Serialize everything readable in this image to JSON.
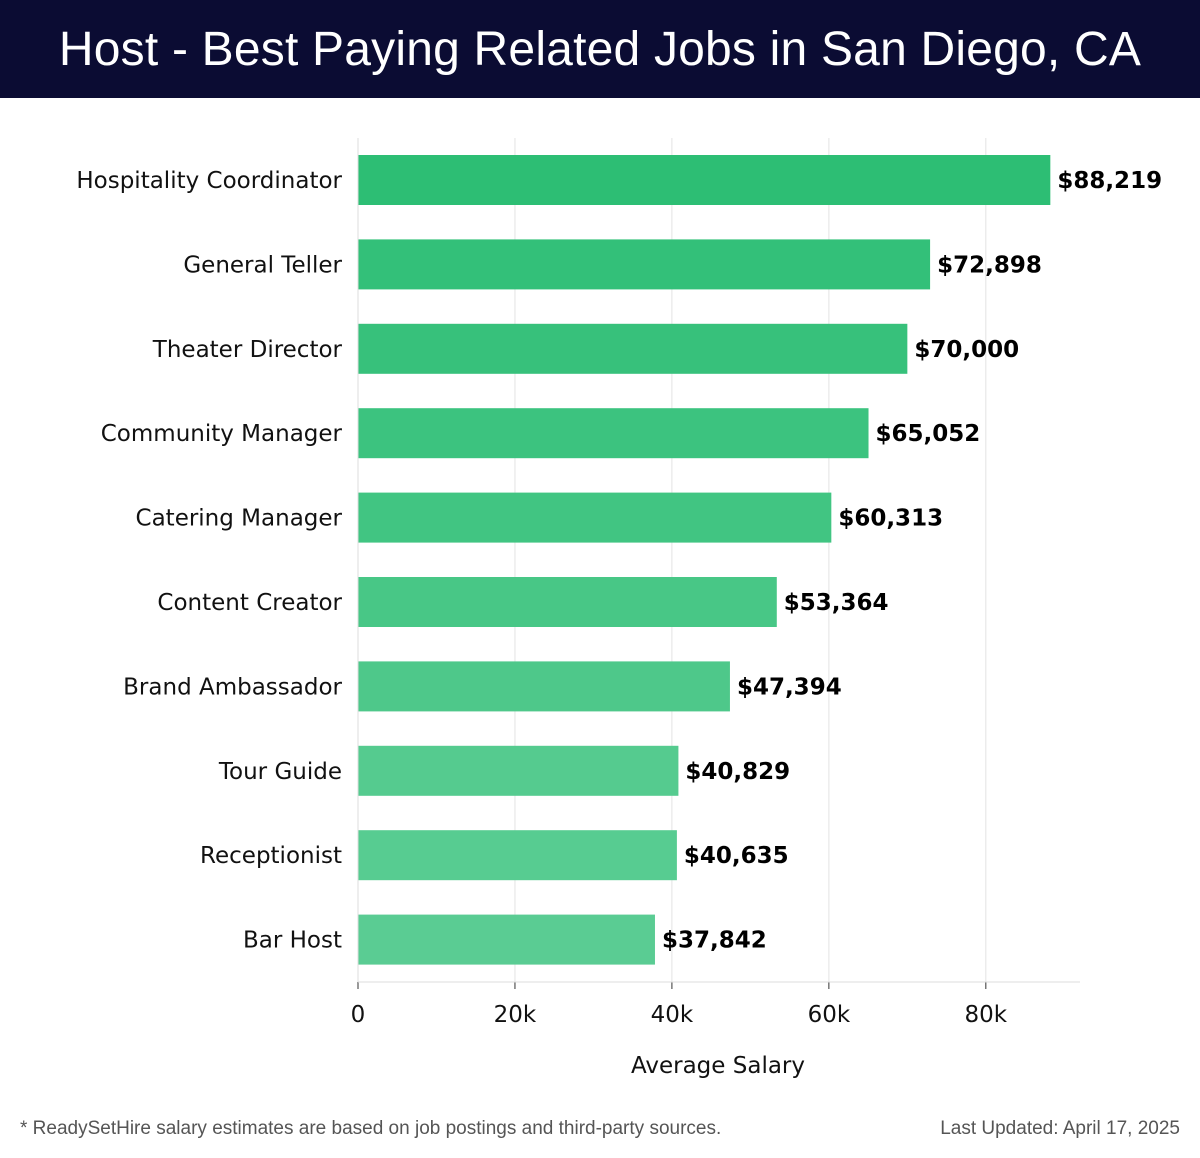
{
  "header": {
    "title": "Host - Best Paying Related Jobs in San Diego, CA"
  },
  "chart_data": {
    "type": "bar",
    "orientation": "horizontal",
    "title": "Host - Best Paying Related Jobs in San Diego, CA",
    "xlabel": "Average Salary",
    "ylabel": "",
    "xlim": [
      0,
      92000
    ],
    "grid": true,
    "x_ticks": [
      0,
      20000,
      40000,
      60000,
      80000
    ],
    "x_tick_labels": [
      "0",
      "20k",
      "40k",
      "60k",
      "80k"
    ],
    "categories": [
      "Hospitality Coordinator",
      "General Teller",
      "Theater Director",
      "Community Manager",
      "Catering Manager",
      "Content Creator",
      "Brand Ambassador",
      "Tour Guide",
      "Receptionist",
      "Bar Host"
    ],
    "values": [
      88219,
      72898,
      70000,
      65052,
      60313,
      53364,
      47394,
      40829,
      40635,
      37842
    ],
    "value_labels": [
      "$88,219",
      "$72,898",
      "$70,000",
      "$65,052",
      "$60,313",
      "$53,364",
      "$47,394",
      "$40,829",
      "$40,635",
      "$37,842"
    ],
    "colors": [
      "#2dbe74",
      "#33c079",
      "#37c17b",
      "#3cc37f",
      "#41c582",
      "#48c786",
      "#4ec88a",
      "#55cb8f",
      "#57cc91",
      "#5acc93"
    ]
  },
  "footer": {
    "note": "* ReadySetHire salary estimates are based on job postings and third-party sources.",
    "updated": "Last Updated: April 17, 2025"
  }
}
